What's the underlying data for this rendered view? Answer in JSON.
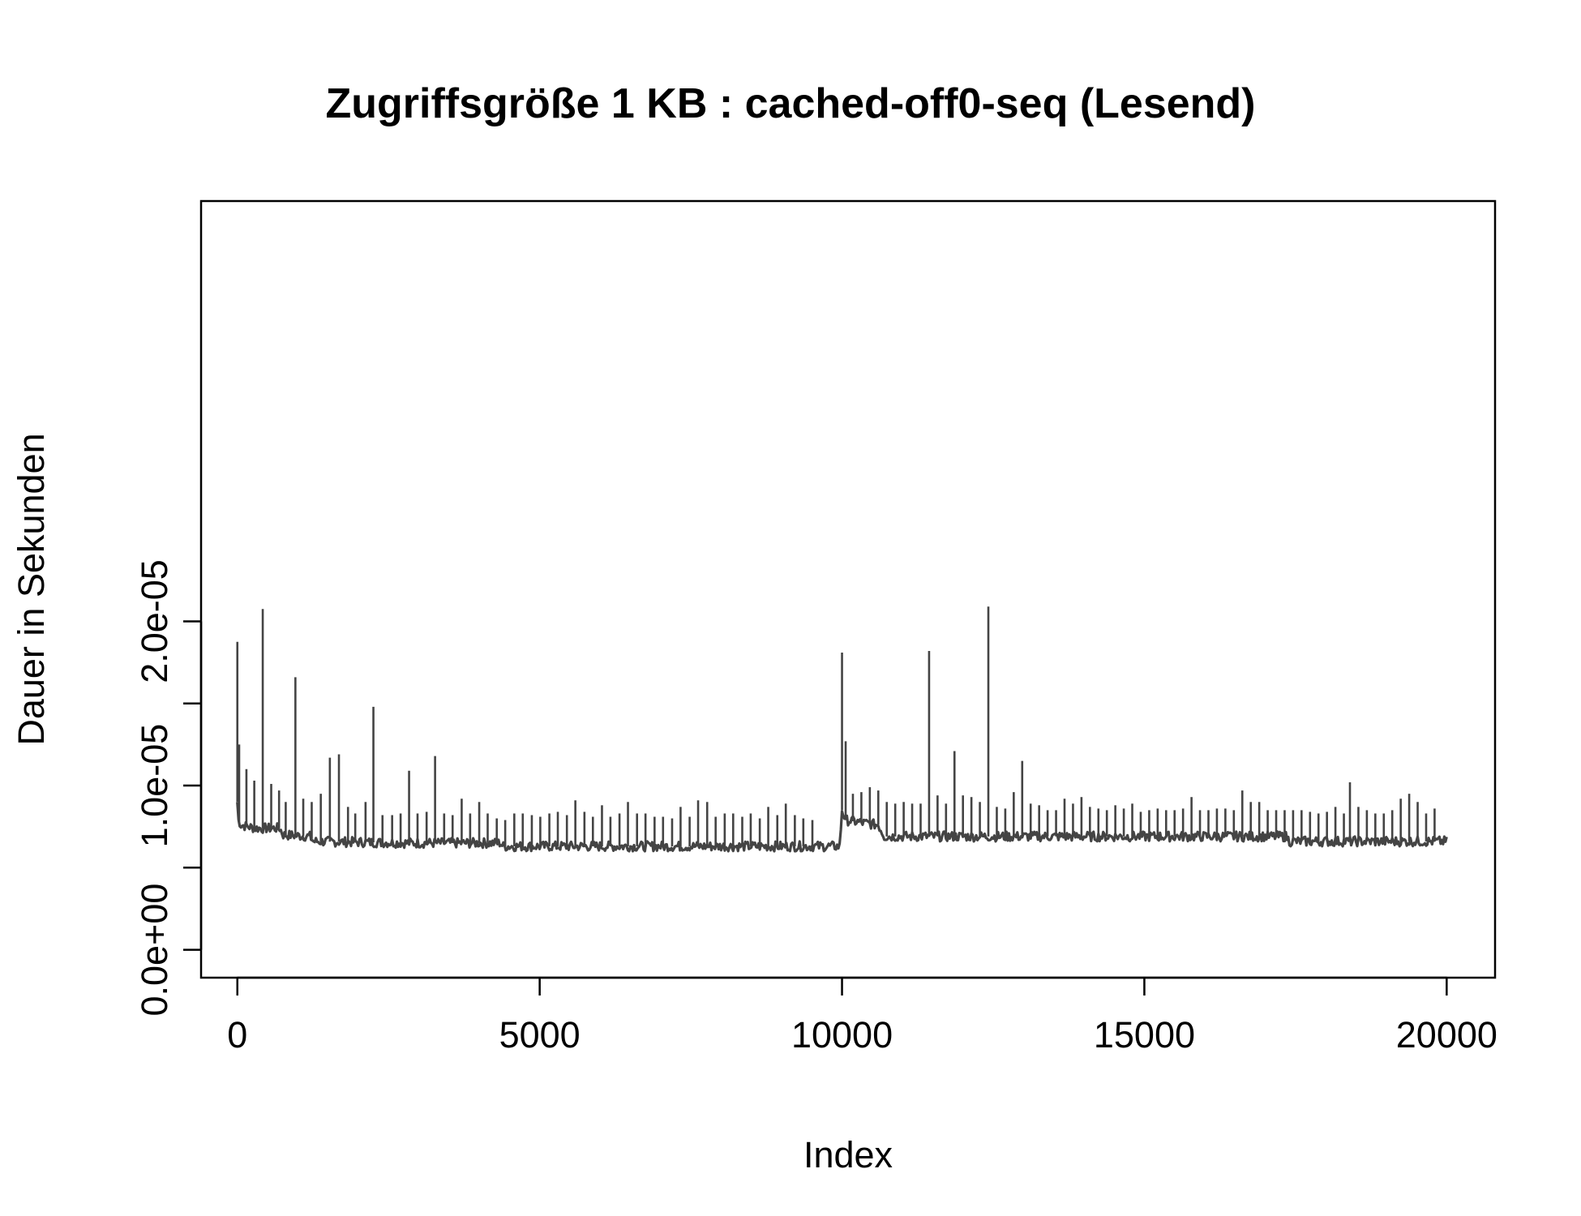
{
  "chart_data": {
    "type": "line",
    "title": "Zugriffsgröße 1 KB : cached-off0-seq (Lesend)",
    "xlabel": "Index",
    "ylabel": "Dauer in Sekunden",
    "xlim": [
      -600,
      20800
    ],
    "ylim": [
      -1.7e-06,
      4.56e-05
    ],
    "x_ticks": [
      0,
      5000,
      10000,
      15000,
      20000
    ],
    "x_tick_labels": [
      "0",
      "5000",
      "10000",
      "15000",
      "20000"
    ],
    "y_ticks": [
      0,
      5e-06,
      1e-05,
      1.5e-05,
      2e-05
    ],
    "y_tick_labels": [
      "0.0e+00",
      "",
      "1.0e-05",
      "",
      "2.0e-05"
    ],
    "grid": false,
    "line_color": "#444444",
    "series": [
      {
        "name": "",
        "baseline": [
          [
            0,
            9e-06
          ],
          [
            20,
            7.9e-06
          ],
          [
            60,
            7.6e-06
          ],
          [
            300,
            7.4e-06
          ],
          [
            700,
            7.4e-06
          ],
          [
            760,
            7e-06
          ],
          [
            1200,
            6.9e-06
          ],
          [
            1260,
            6.6e-06
          ],
          [
            2900,
            6.5e-06
          ],
          [
            4350,
            6.5e-06
          ],
          [
            4400,
            6.3e-06
          ],
          [
            9960,
            6.3e-06
          ],
          [
            10000,
            8.5e-06
          ],
          [
            10060,
            7.9e-06
          ],
          [
            10400,
            7.7e-06
          ],
          [
            10600,
            7.6e-06
          ],
          [
            10700,
            6.9e-06
          ],
          [
            17350,
            6.9e-06
          ],
          [
            17400,
            6.6e-06
          ],
          [
            20000,
            6.6e-06
          ]
        ],
        "spikes": [
          [
            0,
            1.875e-05
          ],
          [
            30,
            1.25e-05
          ],
          [
            150,
            1.1e-05
          ],
          [
            280,
            1.03e-05
          ],
          [
            420,
            2.075e-05
          ],
          [
            560,
            1.01e-05
          ],
          [
            690,
            9.7e-06
          ],
          [
            800,
            9e-06
          ],
          [
            960,
            1.66e-05
          ],
          [
            1090,
            9.2e-06
          ],
          [
            1230,
            9e-06
          ],
          [
            1380,
            9.5e-06
          ],
          [
            1530,
            1.17e-05
          ],
          [
            1680,
            1.19e-05
          ],
          [
            1830,
            8.7e-06
          ],
          [
            1950,
            8.3e-06
          ],
          [
            2120,
            9e-06
          ],
          [
            2250,
            1.48e-05
          ],
          [
            2400,
            8.2e-06
          ],
          [
            2560,
            8.2e-06
          ],
          [
            2700,
            8.3e-06
          ],
          [
            2840,
            1.09e-05
          ],
          [
            2980,
            8.3e-06
          ],
          [
            3130,
            8.4e-06
          ],
          [
            3270,
            1.18e-05
          ],
          [
            3420,
            8.3e-06
          ],
          [
            3560,
            8.2e-06
          ],
          [
            3710,
            9.2e-06
          ],
          [
            3850,
            8.3e-06
          ],
          [
            4000,
            9e-06
          ],
          [
            4140,
            8.3e-06
          ],
          [
            4290,
            8e-06
          ],
          [
            4430,
            7.9e-06
          ],
          [
            4580,
            8.3e-06
          ],
          [
            4720,
            8.3e-06
          ],
          [
            4870,
            8.2e-06
          ],
          [
            5010,
            8.1e-06
          ],
          [
            5160,
            8.3e-06
          ],
          [
            5300,
            8.4e-06
          ],
          [
            5450,
            8.2e-06
          ],
          [
            5590,
            9.1e-06
          ],
          [
            5740,
            8.4e-06
          ],
          [
            5880,
            8.1e-06
          ],
          [
            6030,
            8.8e-06
          ],
          [
            6170,
            8.1e-06
          ],
          [
            6320,
            8.3e-06
          ],
          [
            6460,
            9e-06
          ],
          [
            6610,
            8.3e-06
          ],
          [
            6750,
            8.3e-06
          ],
          [
            6900,
            8.1e-06
          ],
          [
            7040,
            8.1e-06
          ],
          [
            7190,
            8e-06
          ],
          [
            7330,
            8.7e-06
          ],
          [
            7480,
            8.1e-06
          ],
          [
            7620,
            9.1e-06
          ],
          [
            7770,
            9e-06
          ],
          [
            7910,
            8.1e-06
          ],
          [
            8060,
            8.3e-06
          ],
          [
            8200,
            8.3e-06
          ],
          [
            8350,
            8.1e-06
          ],
          [
            8490,
            8.3e-06
          ],
          [
            8640,
            8e-06
          ],
          [
            8780,
            8.7e-06
          ],
          [
            8930,
            8.2e-06
          ],
          [
            9070,
            8.9e-06
          ],
          [
            9220,
            8.2e-06
          ],
          [
            9360,
            8e-06
          ],
          [
            9510,
            7.9e-06
          ],
          [
            10000,
            1.81e-05
          ],
          [
            10060,
            1.27e-05
          ],
          [
            10180,
            9.5e-06
          ],
          [
            10320,
            9.6e-06
          ],
          [
            10460,
            9.9e-06
          ],
          [
            10600,
            9.7e-06
          ],
          [
            10740,
            9e-06
          ],
          [
            10880,
            8.9e-06
          ],
          [
            11020,
            9e-06
          ],
          [
            11160,
            8.9e-06
          ],
          [
            11300,
            8.9e-06
          ],
          [
            11440,
            1.82e-05
          ],
          [
            11580,
            9.4e-06
          ],
          [
            11720,
            8.9e-06
          ],
          [
            11860,
            1.21e-05
          ],
          [
            12000,
            9.4e-06
          ],
          [
            12140,
            9.3e-06
          ],
          [
            12280,
            9e-06
          ],
          [
            12420,
            2.09e-05
          ],
          [
            12560,
            8.7e-06
          ],
          [
            12700,
            8.6e-06
          ],
          [
            12840,
            9.6e-06
          ],
          [
            12980,
            1.15e-05
          ],
          [
            13120,
            8.9e-06
          ],
          [
            13260,
            8.8e-06
          ],
          [
            13400,
            8.5e-06
          ],
          [
            13540,
            8.5e-06
          ],
          [
            13680,
            9.2e-06
          ],
          [
            13820,
            8.9e-06
          ],
          [
            13960,
            9.3e-06
          ],
          [
            14100,
            8.7e-06
          ],
          [
            14240,
            8.6e-06
          ],
          [
            14380,
            8.5e-06
          ],
          [
            14520,
            8.8e-06
          ],
          [
            14660,
            8.6e-06
          ],
          [
            14800,
            8.9e-06
          ],
          [
            14940,
            8.4e-06
          ],
          [
            15080,
            8.5e-06
          ],
          [
            15220,
            8.6e-06
          ],
          [
            15360,
            8.5e-06
          ],
          [
            15500,
            8.5e-06
          ],
          [
            15640,
            8.6e-06
          ],
          [
            15780,
            9.3e-06
          ],
          [
            15920,
            8.5e-06
          ],
          [
            16060,
            8.5e-06
          ],
          [
            16200,
            8.6e-06
          ],
          [
            16340,
            8.6e-06
          ],
          [
            16480,
            8.5e-06
          ],
          [
            16620,
            9.7e-06
          ],
          [
            16760,
            9e-06
          ],
          [
            16900,
            9e-06
          ],
          [
            17040,
            8.5e-06
          ],
          [
            17180,
            8.5e-06
          ],
          [
            17320,
            8.5e-06
          ],
          [
            17460,
            8.5e-06
          ],
          [
            17600,
            8.5e-06
          ],
          [
            17740,
            8.4e-06
          ],
          [
            17880,
            8.3e-06
          ],
          [
            18020,
            8.4e-06
          ],
          [
            18160,
            8.7e-06
          ],
          [
            18300,
            8.3e-06
          ],
          [
            18400,
            1.02e-05
          ],
          [
            18540,
            8.7e-06
          ],
          [
            18680,
            8.5e-06
          ],
          [
            18820,
            8.3e-06
          ],
          [
            18960,
            8.3e-06
          ],
          [
            19100,
            8.5e-06
          ],
          [
            19240,
            9.2e-06
          ],
          [
            19380,
            9.5e-06
          ],
          [
            19520,
            9e-06
          ],
          [
            19660,
            8.3e-06
          ],
          [
            19800,
            8.6e-06
          ]
        ]
      }
    ]
  }
}
